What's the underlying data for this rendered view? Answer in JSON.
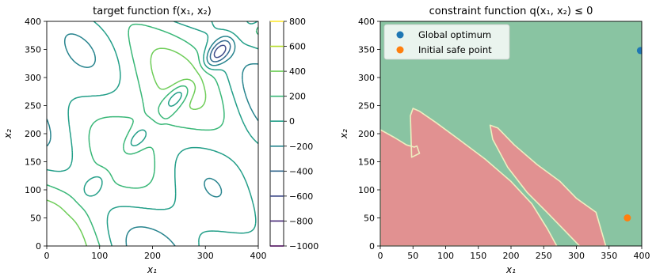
{
  "chart_data": [
    {
      "type": "contour",
      "title": "target function f(x₁, x₂)",
      "xlabel": "x₁",
      "ylabel": "x₂",
      "xlim": [
        0,
        400
      ],
      "ylim": [
        0,
        400
      ],
      "x_ticks": [
        "0",
        "100",
        "200",
        "300",
        "400"
      ],
      "y_ticks": [
        "0",
        "50",
        "100",
        "150",
        "200",
        "250",
        "300",
        "350",
        "400"
      ],
      "colorbar": {
        "ticks": [
          "800",
          "600",
          "400",
          "200",
          "0",
          "−200",
          "−400",
          "−600",
          "−800",
          "−1000"
        ],
        "levels": [
          800,
          600,
          400,
          200,
          0,
          -200,
          -400,
          -600,
          -800,
          -1000
        ],
        "range": [
          -1000,
          800
        ]
      },
      "colormap": "viridis",
      "grid": false
    },
    {
      "type": "region",
      "title": "constraint function q(x₁, x₂) ≤ 0",
      "xlabel": "x₁",
      "ylabel": "x₂",
      "xlim": [
        0,
        400
      ],
      "ylim": [
        0,
        400
      ],
      "x_ticks": [
        "0",
        "50",
        "100",
        "150",
        "200",
        "250",
        "300",
        "350",
        "400"
      ],
      "y_ticks": [
        "0",
        "50",
        "100",
        "150",
        "200",
        "250",
        "300",
        "350",
        "400"
      ],
      "safe_color": "#89c4a2",
      "unsafe_color": "#e19191",
      "boundary_color": "#eeeec0",
      "unsafe_region_1": [
        [
          0,
          0
        ],
        [
          0,
          207
        ],
        [
          20,
          195
        ],
        [
          42,
          175
        ],
        [
          50,
          178
        ],
        [
          55,
          180
        ],
        [
          60,
          168
        ],
        [
          48,
          160
        ],
        [
          52,
          150
        ],
        [
          47,
          245
        ],
        [
          60,
          240
        ],
        [
          85,
          220
        ],
        [
          120,
          190
        ],
        [
          160,
          155
        ],
        [
          200,
          115
        ],
        [
          235,
          75
        ],
        [
          258,
          30
        ],
        [
          270,
          0
        ]
      ],
      "unsafe_region_2": [
        [
          168,
          215
        ],
        [
          180,
          210
        ],
        [
          205,
          180
        ],
        [
          240,
          145
        ],
        [
          275,
          115
        ],
        [
          300,
          85
        ],
        [
          330,
          60
        ],
        [
          345,
          0
        ],
        [
          305,
          0
        ],
        [
          280,
          30
        ],
        [
          255,
          60
        ],
        [
          225,
          95
        ],
        [
          195,
          140
        ],
        [
          172,
          190
        ]
      ],
      "points": [
        {
          "name": "Global optimum",
          "x": 398,
          "y": 348,
          "color": "#1f77b4"
        },
        {
          "name": "Initial safe point",
          "x": 378,
          "y": 50,
          "color": "#ff7f0e"
        }
      ],
      "legend": {
        "placement": "top-left",
        "entries": [
          "Global optimum",
          "Initial safe point"
        ]
      },
      "grid": false
    }
  ]
}
